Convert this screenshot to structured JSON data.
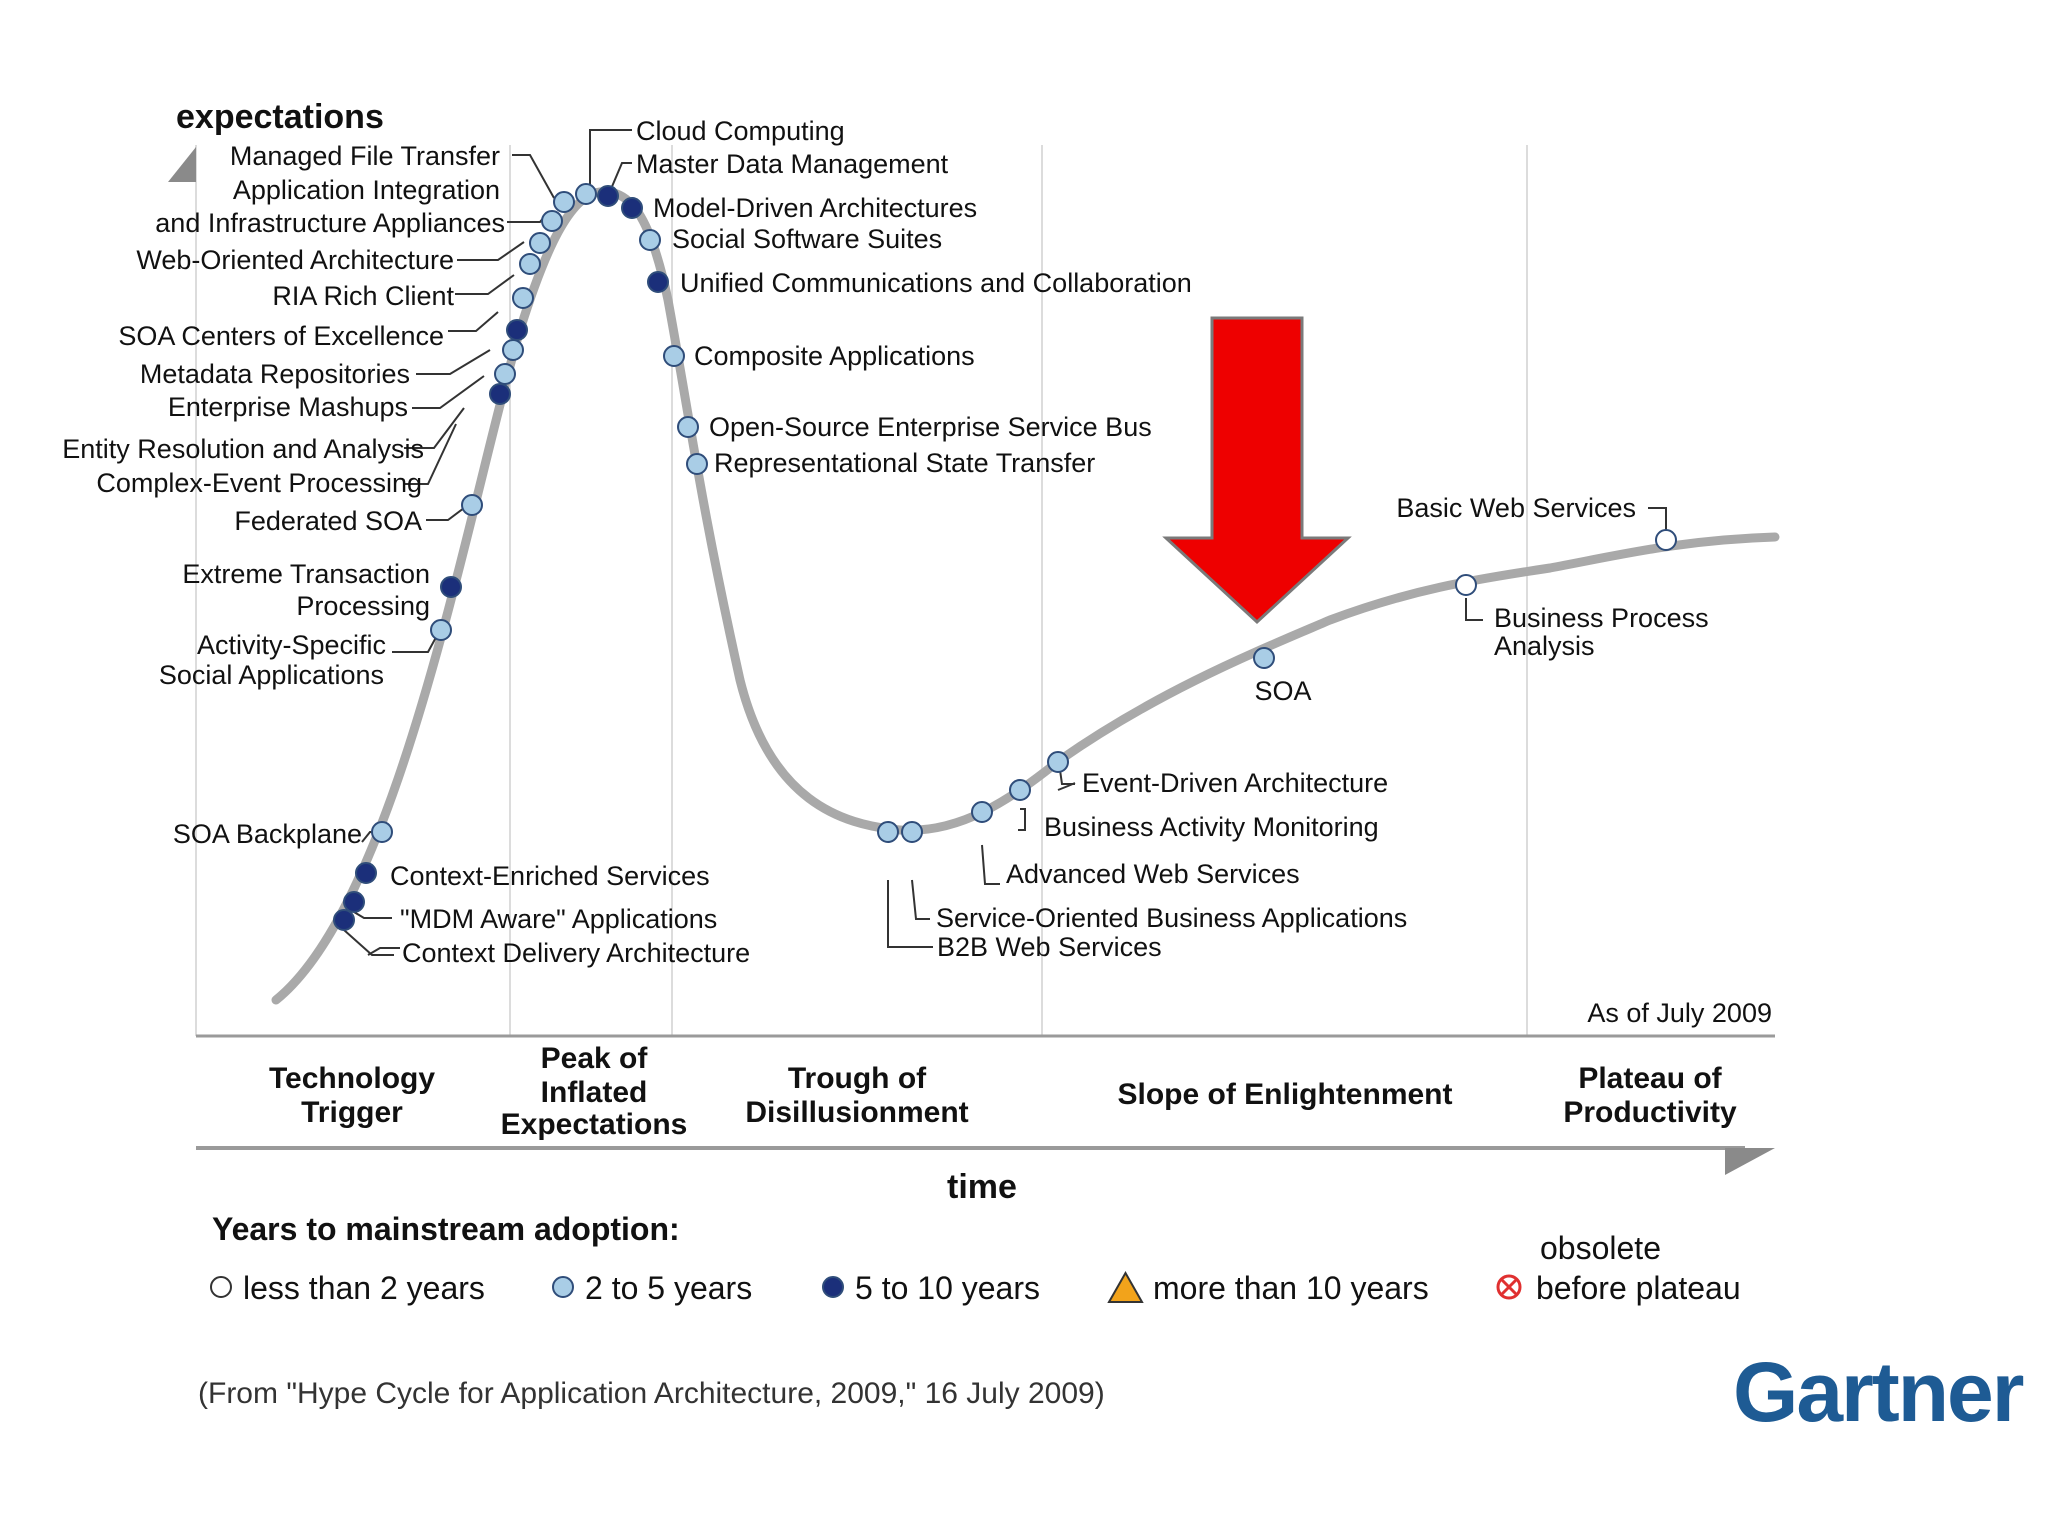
{
  "axes": {
    "y_label": "expectations",
    "x_label": "time"
  },
  "as_of": "As of July 2009",
  "phases": [
    {
      "id": "trigger",
      "lines": [
        "Technology",
        "Trigger"
      ]
    },
    {
      "id": "peak",
      "lines": [
        "Peak of",
        "Inflated",
        "Expectations"
      ]
    },
    {
      "id": "trough",
      "lines": [
        "Trough of",
        "Disillusionment"
      ]
    },
    {
      "id": "slope",
      "lines": [
        "Slope of Enlightenment"
      ]
    },
    {
      "id": "plateau",
      "lines": [
        "Plateau of",
        "Productivity"
      ]
    }
  ],
  "technologies": [
    {
      "name": "Cloud Computing",
      "adoption": "2 to 5 years"
    },
    {
      "name": "Master Data Management",
      "adoption": "5 to 10 years"
    },
    {
      "name": "Model-Driven Architectures",
      "adoption": "5 to 10 years"
    },
    {
      "name": "Social Software Suites",
      "adoption": "2 to 5 years"
    },
    {
      "name": "Unified Communications and Collaboration",
      "adoption": "5 to 10 years"
    },
    {
      "name": "Composite Applications",
      "adoption": "2 to 5 years"
    },
    {
      "name": "Open-Source Enterprise Service Bus",
      "adoption": "2 to 5 years"
    },
    {
      "name": "Representational State Transfer",
      "adoption": "2 to 5 years"
    },
    {
      "name": "Managed File Transfer",
      "adoption": "2 to 5 years"
    },
    {
      "name": "Application Integration and Infrastructure Appliances",
      "lines": [
        "Application Integration",
        "and Infrastructure Appliances"
      ],
      "adoption": "2 to 5 years"
    },
    {
      "name": "Web-Oriented Architecture",
      "adoption": "2 to 5 years"
    },
    {
      "name": "RIA Rich Client",
      "adoption": "2 to 5 years"
    },
    {
      "name": "SOA Centers of Excellence",
      "adoption": "5 to 10 years"
    },
    {
      "name": "Metadata Repositories",
      "adoption": "2 to 5 years"
    },
    {
      "name": "Enterprise Mashups",
      "adoption": "2 to 5 years"
    },
    {
      "name": "Entity Resolution and Analysis",
      "adoption": "5 to 10 years"
    },
    {
      "name": "Complex-Event Processing",
      "adoption": "5 to 10 years"
    },
    {
      "name": "Federated SOA",
      "adoption": "2 to 5 years"
    },
    {
      "name": "Extreme Transaction Processing",
      "lines": [
        "Extreme Transaction",
        "Processing"
      ],
      "adoption": "5 to 10 years"
    },
    {
      "name": "Activity-Specific Social Applications",
      "lines": [
        "Activity-Specific",
        "Social Applications"
      ],
      "adoption": "2 to 5 years"
    },
    {
      "name": "SOA Backplane",
      "adoption": "2 to 5 years"
    },
    {
      "name": "Context-Enriched Services",
      "adoption": "5 to 10 years"
    },
    {
      "name": "\"MDM Aware\" Applications",
      "adoption": "5 to 10 years"
    },
    {
      "name": "Context Delivery Architecture",
      "adoption": "5 to 10 years"
    },
    {
      "name": "B2B Web Services",
      "adoption": "2 to 5 years"
    },
    {
      "name": "Service-Oriented Business Applications",
      "adoption": "2 to 5 years"
    },
    {
      "name": "Advanced Web Services",
      "adoption": "2 to 5 years"
    },
    {
      "name": "Business Activity Monitoring",
      "adoption": "2 to 5 years"
    },
    {
      "name": "Event-Driven Architecture",
      "adoption": "2 to 5 years"
    },
    {
      "name": "SOA",
      "adoption": "2 to 5 years",
      "highlighted": true
    },
    {
      "name": "Business Process Analysis",
      "lines": [
        "Business Process",
        "Analysis"
      ],
      "adoption": "less than 2 years"
    },
    {
      "name": "Basic Web Services",
      "adoption": "less than 2 years"
    }
  ],
  "legend": {
    "title": "Years to mainstream adoption:",
    "items": [
      {
        "label": "less than 2 years",
        "marker": "hollow-circle"
      },
      {
        "label": "2 to 5 years",
        "marker": "light-blue-circle"
      },
      {
        "label": "5 to 10 years",
        "marker": "dark-blue-circle"
      },
      {
        "label": "more than 10 years",
        "marker": "triangle"
      },
      {
        "label": "before plateau",
        "label_top": "obsolete",
        "marker": "obsolete-x"
      }
    ]
  },
  "source": "(From \"Hype Cycle for Application Architecture, 2009,\" 16 July 2009)",
  "logo": "Gartner",
  "colors": {
    "curve": "#a9a9a9",
    "light_blue": "#a9cde6",
    "dark_blue": "#1b2f7a",
    "marker_stroke": "#2f4d7a",
    "arrow": "#ee0000",
    "triangle": "#f2a31b",
    "obsolete": "#e03030",
    "logo": "#1e5b94"
  }
}
